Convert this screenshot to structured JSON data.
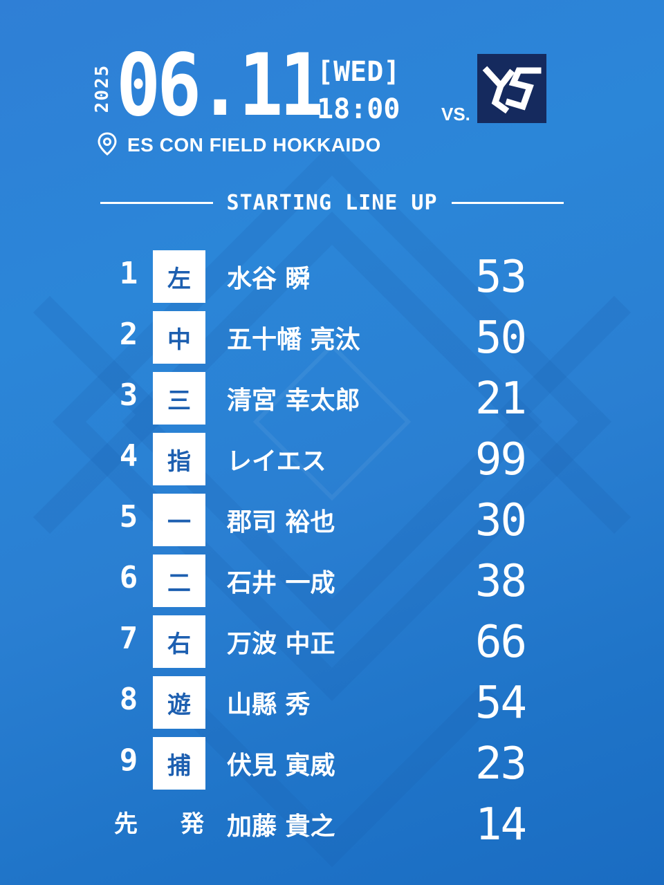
{
  "header": {
    "year": "2025",
    "date": "06.11",
    "day_of_week": "[WED]",
    "time": "18:00",
    "vs_label": "VS.",
    "venue": "ES CON FIELD HOKKAIDO"
  },
  "section_title": "STARTING LINE UP",
  "lineup": [
    {
      "order": "1",
      "position": "左",
      "name": "水谷 瞬",
      "number": "53"
    },
    {
      "order": "2",
      "position": "中",
      "name": "五十幡 亮汰",
      "number": "50"
    },
    {
      "order": "3",
      "position": "三",
      "name": "清宮 幸太郎",
      "number": "21"
    },
    {
      "order": "4",
      "position": "指",
      "name": "レイエス",
      "number": "99"
    },
    {
      "order": "5",
      "position": "一",
      "name": "郡司 裕也",
      "number": "30"
    },
    {
      "order": "6",
      "position": "二",
      "name": "石井 一成",
      "number": "38"
    },
    {
      "order": "7",
      "position": "右",
      "name": "万波 中正",
      "number": "66"
    },
    {
      "order": "8",
      "position": "遊",
      "name": "山縣 秀",
      "number": "54"
    },
    {
      "order": "9",
      "position": "捕",
      "name": "伏見 寅威",
      "number": "23"
    }
  ],
  "starter": {
    "label_1": "先",
    "label_2": "発",
    "name": "加藤 貴之",
    "number": "14"
  },
  "colors": {
    "background": "#2a7fd2",
    "position_text": "#1d5fb0",
    "team_logo_bg": "#152a5e"
  },
  "icons": {
    "venue": "location-pin-icon",
    "team_logo": "swallows-logo-icon"
  }
}
